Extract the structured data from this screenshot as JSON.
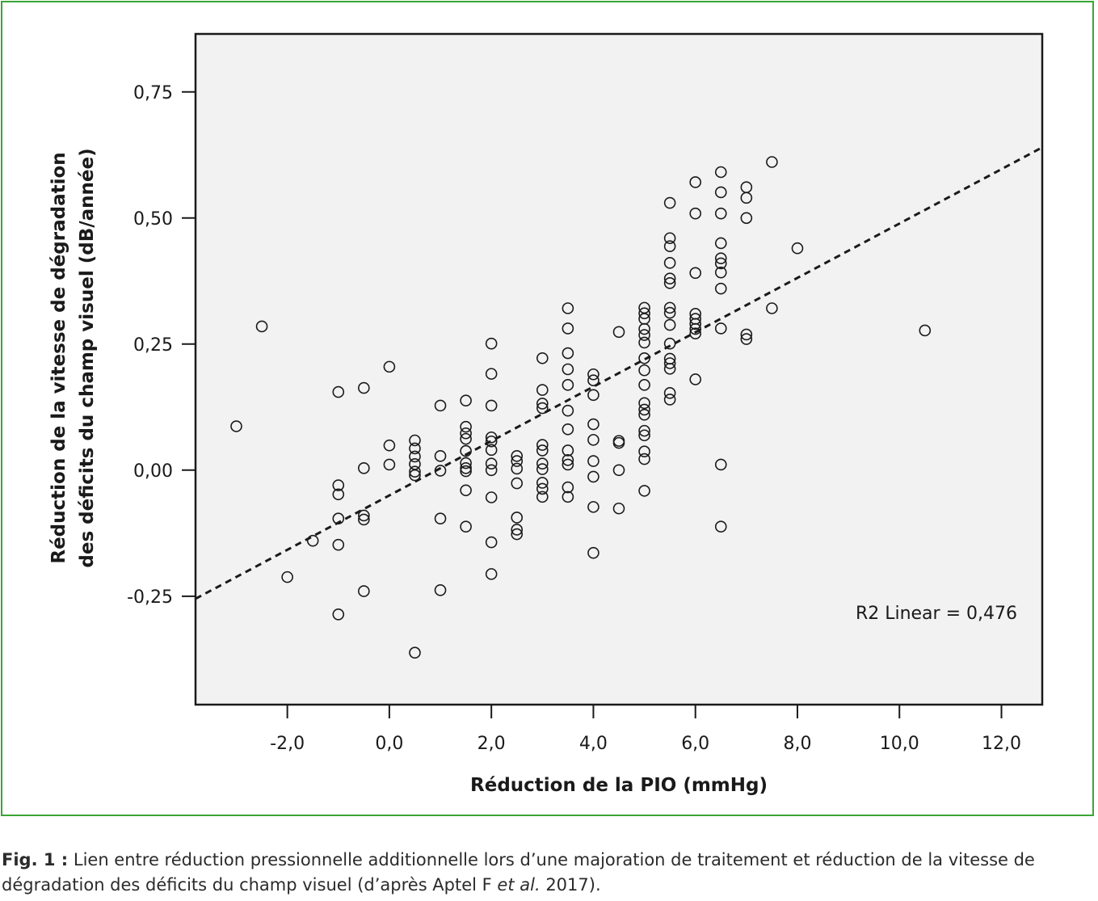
{
  "chart_data": {
    "type": "scatter",
    "xlabel": "Réduction de la PIO (mmHg)",
    "ylabel_lines": [
      "Réduction de la vitesse de dégradation",
      "des déficits du champ visuel (dB/année)"
    ],
    "xlim": [
      -3.8,
      12.8
    ],
    "ylim": [
      -0.465,
      0.865
    ],
    "x_ticks": [
      -2.0,
      0.0,
      2.0,
      4.0,
      6.0,
      8.0,
      10.0,
      12.0
    ],
    "x_tick_labels": [
      "-2,0",
      "0,0",
      "2,0",
      "4,0",
      "6,0",
      "8,0",
      "10,0",
      "12,0"
    ],
    "y_ticks": [
      -0.25,
      0.0,
      0.25,
      0.5,
      0.75
    ],
    "y_tick_labels": [
      "-0,25",
      "0,00",
      "0,25",
      "0,50",
      "0,75"
    ],
    "grid": false,
    "fit_line": {
      "type": "linear",
      "dashed": true,
      "points": [
        [
          -3.8,
          -0.255
        ],
        [
          12.8,
          0.64
        ]
      ]
    },
    "annotation": "R2 Linear = 0,476",
    "annotation_position": "bottom-right",
    "points": [
      [
        -3.0,
        0.087
      ],
      [
        -2.5,
        0.285
      ],
      [
        -2.0,
        -0.212
      ],
      [
        -1.5,
        -0.14
      ],
      [
        -1.0,
        0.155
      ],
      [
        -1.0,
        -0.03
      ],
      [
        -1.0,
        -0.048
      ],
      [
        -1.0,
        -0.096
      ],
      [
        -1.0,
        -0.148
      ],
      [
        -1.0,
        -0.286
      ],
      [
        -0.5,
        0.163
      ],
      [
        -0.5,
        0.004
      ],
      [
        -0.5,
        -0.09
      ],
      [
        -0.5,
        -0.098
      ],
      [
        -0.5,
        -0.24
      ],
      [
        0.0,
        0.205
      ],
      [
        0.0,
        0.049
      ],
      [
        0.0,
        0.011
      ],
      [
        0.5,
        0.059
      ],
      [
        0.5,
        0.043
      ],
      [
        0.5,
        0.027
      ],
      [
        0.5,
        0.012
      ],
      [
        0.5,
        -0.003
      ],
      [
        0.5,
        -0.01
      ],
      [
        0.5,
        -0.362
      ],
      [
        1.0,
        0.128
      ],
      [
        1.0,
        0.028
      ],
      [
        1.0,
        -0.001
      ],
      [
        1.0,
        -0.096
      ],
      [
        1.0,
        -0.238
      ],
      [
        1.5,
        0.138
      ],
      [
        1.5,
        0.086
      ],
      [
        1.5,
        0.073
      ],
      [
        1.5,
        0.062
      ],
      [
        1.5,
        0.038
      ],
      [
        1.5,
        0.014
      ],
      [
        1.5,
        0.004
      ],
      [
        1.5,
        -0.002
      ],
      [
        1.5,
        -0.04
      ],
      [
        1.5,
        -0.112
      ],
      [
        2.0,
        0.251
      ],
      [
        2.0,
        0.191
      ],
      [
        2.0,
        0.128
      ],
      [
        2.0,
        0.065
      ],
      [
        2.0,
        0.057
      ],
      [
        2.0,
        0.04
      ],
      [
        2.0,
        0.013
      ],
      [
        2.0,
        0.0
      ],
      [
        2.0,
        -0.054
      ],
      [
        2.0,
        -0.143
      ],
      [
        2.0,
        -0.206
      ],
      [
        2.5,
        0.028
      ],
      [
        2.5,
        0.018
      ],
      [
        2.5,
        0.003
      ],
      [
        2.5,
        -0.026
      ],
      [
        2.5,
        -0.094
      ],
      [
        2.5,
        -0.118
      ],
      [
        2.5,
        -0.127
      ],
      [
        3.0,
        0.222
      ],
      [
        3.0,
        0.159
      ],
      [
        3.0,
        0.132
      ],
      [
        3.0,
        0.123
      ],
      [
        3.0,
        0.05
      ],
      [
        3.0,
        0.039
      ],
      [
        3.0,
        0.013
      ],
      [
        3.0,
        0.002
      ],
      [
        3.0,
        -0.025
      ],
      [
        3.0,
        -0.037
      ],
      [
        3.0,
        -0.053
      ],
      [
        3.5,
        0.321
      ],
      [
        3.5,
        0.281
      ],
      [
        3.5,
        0.232
      ],
      [
        3.5,
        0.2
      ],
      [
        3.5,
        0.169
      ],
      [
        3.5,
        0.118
      ],
      [
        3.5,
        0.081
      ],
      [
        3.5,
        0.039
      ],
      [
        3.5,
        0.02
      ],
      [
        3.5,
        0.011
      ],
      [
        3.5,
        -0.034
      ],
      [
        3.5,
        -0.053
      ],
      [
        4.0,
        0.19
      ],
      [
        4.0,
        0.178
      ],
      [
        4.0,
        0.149
      ],
      [
        4.0,
        0.091
      ],
      [
        4.0,
        0.06
      ],
      [
        4.0,
        0.018
      ],
      [
        4.0,
        -0.013
      ],
      [
        4.0,
        -0.073
      ],
      [
        4.0,
        -0.164
      ],
      [
        4.5,
        0.274
      ],
      [
        4.5,
        0.058
      ],
      [
        4.5,
        0.054
      ],
      [
        4.5,
        0.0
      ],
      [
        4.5,
        -0.076
      ],
      [
        5.0,
        0.322
      ],
      [
        5.0,
        0.311
      ],
      [
        5.0,
        0.3
      ],
      [
        5.0,
        0.28
      ],
      [
        5.0,
        0.268
      ],
      [
        5.0,
        0.253
      ],
      [
        5.0,
        0.222
      ],
      [
        5.0,
        0.198
      ],
      [
        5.0,
        0.169
      ],
      [
        5.0,
        0.133
      ],
      [
        5.0,
        0.12
      ],
      [
        5.0,
        0.11
      ],
      [
        5.0,
        0.078
      ],
      [
        5.0,
        0.069
      ],
      [
        5.0,
        0.037
      ],
      [
        5.0,
        0.022
      ],
      [
        5.0,
        -0.041
      ],
      [
        5.5,
        0.53
      ],
      [
        5.5,
        0.46
      ],
      [
        5.5,
        0.444
      ],
      [
        5.5,
        0.411
      ],
      [
        5.5,
        0.38
      ],
      [
        5.5,
        0.371
      ],
      [
        5.5,
        0.322
      ],
      [
        5.5,
        0.312
      ],
      [
        5.5,
        0.288
      ],
      [
        5.5,
        0.251
      ],
      [
        5.5,
        0.221
      ],
      [
        5.5,
        0.212
      ],
      [
        5.5,
        0.201
      ],
      [
        5.5,
        0.153
      ],
      [
        5.5,
        0.14
      ],
      [
        6.0,
        0.571
      ],
      [
        6.0,
        0.509
      ],
      [
        6.0,
        0.391
      ],
      [
        6.0,
        0.31
      ],
      [
        6.0,
        0.3
      ],
      [
        6.0,
        0.29
      ],
      [
        6.0,
        0.28
      ],
      [
        6.0,
        0.271
      ],
      [
        6.0,
        0.18
      ],
      [
        6.5,
        0.591
      ],
      [
        6.5,
        0.551
      ],
      [
        6.5,
        0.509
      ],
      [
        6.5,
        0.45
      ],
      [
        6.5,
        0.42
      ],
      [
        6.5,
        0.41
      ],
      [
        6.5,
        0.392
      ],
      [
        6.5,
        0.36
      ],
      [
        6.5,
        0.281
      ],
      [
        6.5,
        0.011
      ],
      [
        6.5,
        -0.112
      ],
      [
        7.0,
        0.561
      ],
      [
        7.0,
        0.54
      ],
      [
        7.0,
        0.5
      ],
      [
        7.0,
        0.269
      ],
      [
        7.0,
        0.26
      ],
      [
        7.5,
        0.611
      ],
      [
        7.5,
        0.321
      ],
      [
        8.0,
        0.44
      ],
      [
        10.5,
        0.277
      ]
    ]
  },
  "caption": {
    "label": "Fig. 1 :",
    "text_before": " Lien entre réduction pressionnelle additionnelle lors d’une majoration de traitement et réduction de la vitesse de dégradation des déficits du champ visuel (d’après Aptel F ",
    "italic": "et al.",
    "text_after": " 2017)."
  },
  "colors": {
    "frame_border": "#3aa535",
    "plot_background": "#f2f2f2",
    "ink": "#1a1a1a"
  }
}
